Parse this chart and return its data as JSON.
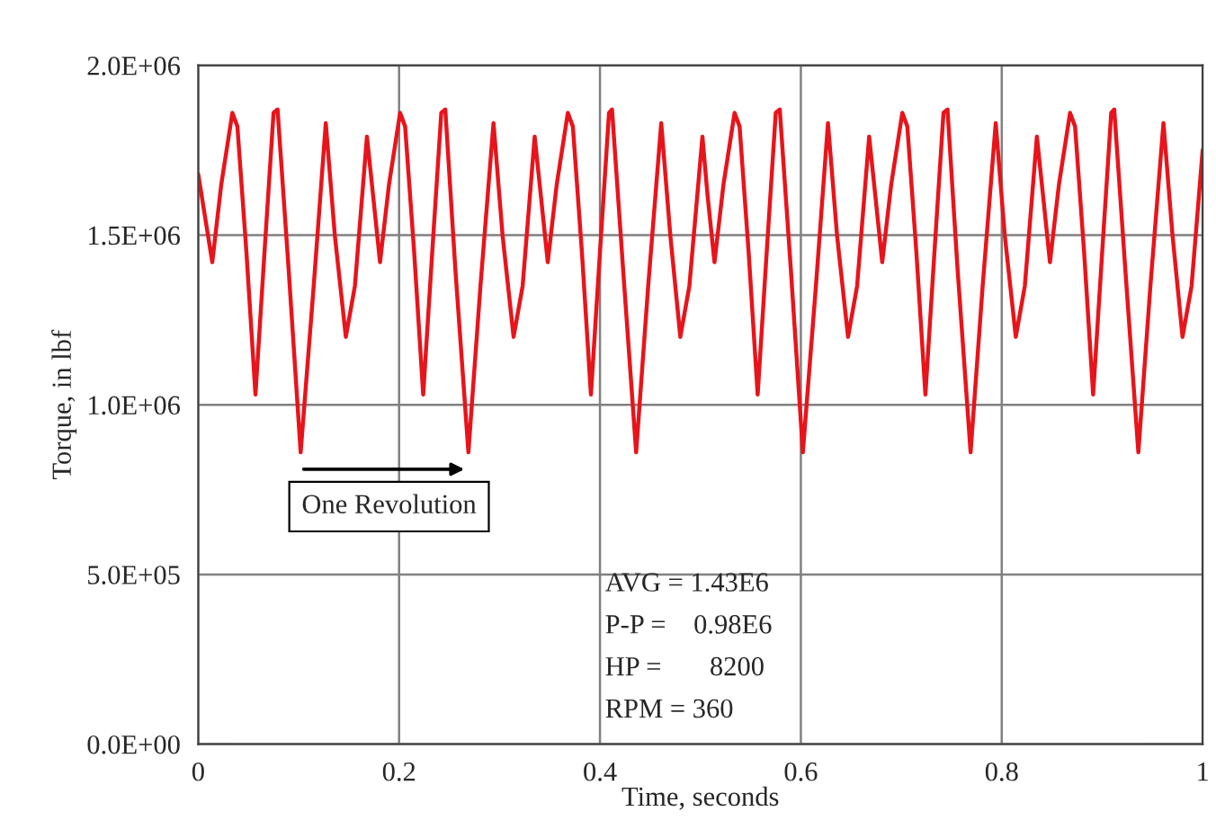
{
  "chart_data": {
    "type": "line",
    "xlabel": "Time, seconds",
    "ylabel": "Torque, in lbf",
    "xlim": [
      0,
      1
    ],
    "xticks": [
      0,
      0.2,
      0.4,
      0.6,
      0.8,
      1
    ],
    "ylim": [
      0,
      2000000
    ],
    "yticks": [
      {
        "value": 0,
        "label": "0.0E+00"
      },
      {
        "value": 500000,
        "label": "5.0E+05"
      },
      {
        "value": 1000000,
        "label": "1.0E+06"
      },
      {
        "value": 1500000,
        "label": "1.5E+06"
      },
      {
        "value": 2000000,
        "label": "2.0E+06"
      }
    ],
    "grid": true,
    "marker": "none",
    "line_style": "solid",
    "annotations": [
      "One Revolution",
      "AVG = 1.43E6",
      "P-P =    0.98E6",
      "HP =       8200",
      "RPM = 360"
    ],
    "series": [
      {
        "color": "#e8141b",
        "x": [
          0,
          0.014,
          0.023,
          0.034,
          0.039,
          0.048,
          0.057,
          0.066,
          0.075,
          0.079,
          0.09,
          0.102,
          0.115,
          0.127,
          0.136,
          0.147,
          0.156,
          0.168,
          0.174,
          0.181,
          0.19,
          0.201,
          0.206,
          0.215,
          0.224,
          0.233,
          0.242,
          0.246,
          0.256,
          0.269,
          0.281,
          0.294,
          0.303,
          0.314,
          0.323,
          0.335,
          0.341,
          0.348,
          0.357,
          0.368,
          0.373,
          0.382,
          0.391,
          0.4,
          0.409,
          0.412,
          0.423,
          0.436,
          0.448,
          0.461,
          0.47,
          0.48,
          0.489,
          0.502,
          0.507,
          0.514,
          0.523,
          0.534,
          0.539,
          0.548,
          0.557,
          0.566,
          0.575,
          0.579,
          0.59,
          0.602,
          0.615,
          0.627,
          0.636,
          0.647,
          0.656,
          0.668,
          0.674,
          0.681,
          0.69,
          0.701,
          0.706,
          0.715,
          0.724,
          0.733,
          0.742,
          0.746,
          0.756,
          0.769,
          0.781,
          0.794,
          0.803,
          0.814,
          0.823,
          0.835,
          0.841,
          0.848,
          0.857,
          0.868,
          0.873,
          0.882,
          0.891,
          0.9,
          0.909,
          0.912,
          0.923,
          0.936,
          0.948,
          0.961,
          0.97,
          0.98,
          0.989,
          1.0
        ],
        "values": [
          1680000,
          1420000,
          1650000,
          1860000,
          1820000,
          1450000,
          1030000,
          1450000,
          1860000,
          1870000,
          1400000,
          860000,
          1350000,
          1830000,
          1500000,
          1200000,
          1350000,
          1790000,
          1620000,
          1420000,
          1650000,
          1860000,
          1820000,
          1450000,
          1030000,
          1450000,
          1860000,
          1870000,
          1400000,
          860000,
          1350000,
          1830000,
          1500000,
          1200000,
          1350000,
          1790000,
          1620000,
          1420000,
          1650000,
          1860000,
          1820000,
          1450000,
          1030000,
          1450000,
          1860000,
          1870000,
          1400000,
          860000,
          1350000,
          1830000,
          1500000,
          1200000,
          1350000,
          1790000,
          1620000,
          1420000,
          1650000,
          1860000,
          1820000,
          1450000,
          1030000,
          1450000,
          1860000,
          1870000,
          1400000,
          860000,
          1350000,
          1830000,
          1500000,
          1200000,
          1350000,
          1790000,
          1620000,
          1420000,
          1650000,
          1860000,
          1820000,
          1450000,
          1030000,
          1450000,
          1860000,
          1870000,
          1400000,
          860000,
          1350000,
          1830000,
          1500000,
          1200000,
          1350000,
          1790000,
          1620000,
          1420000,
          1650000,
          1860000,
          1820000,
          1450000,
          1030000,
          1450000,
          1860000,
          1870000,
          1400000,
          860000,
          1350000,
          1830000,
          1500000,
          1200000,
          1350000,
          1750000
        ]
      }
    ]
  }
}
